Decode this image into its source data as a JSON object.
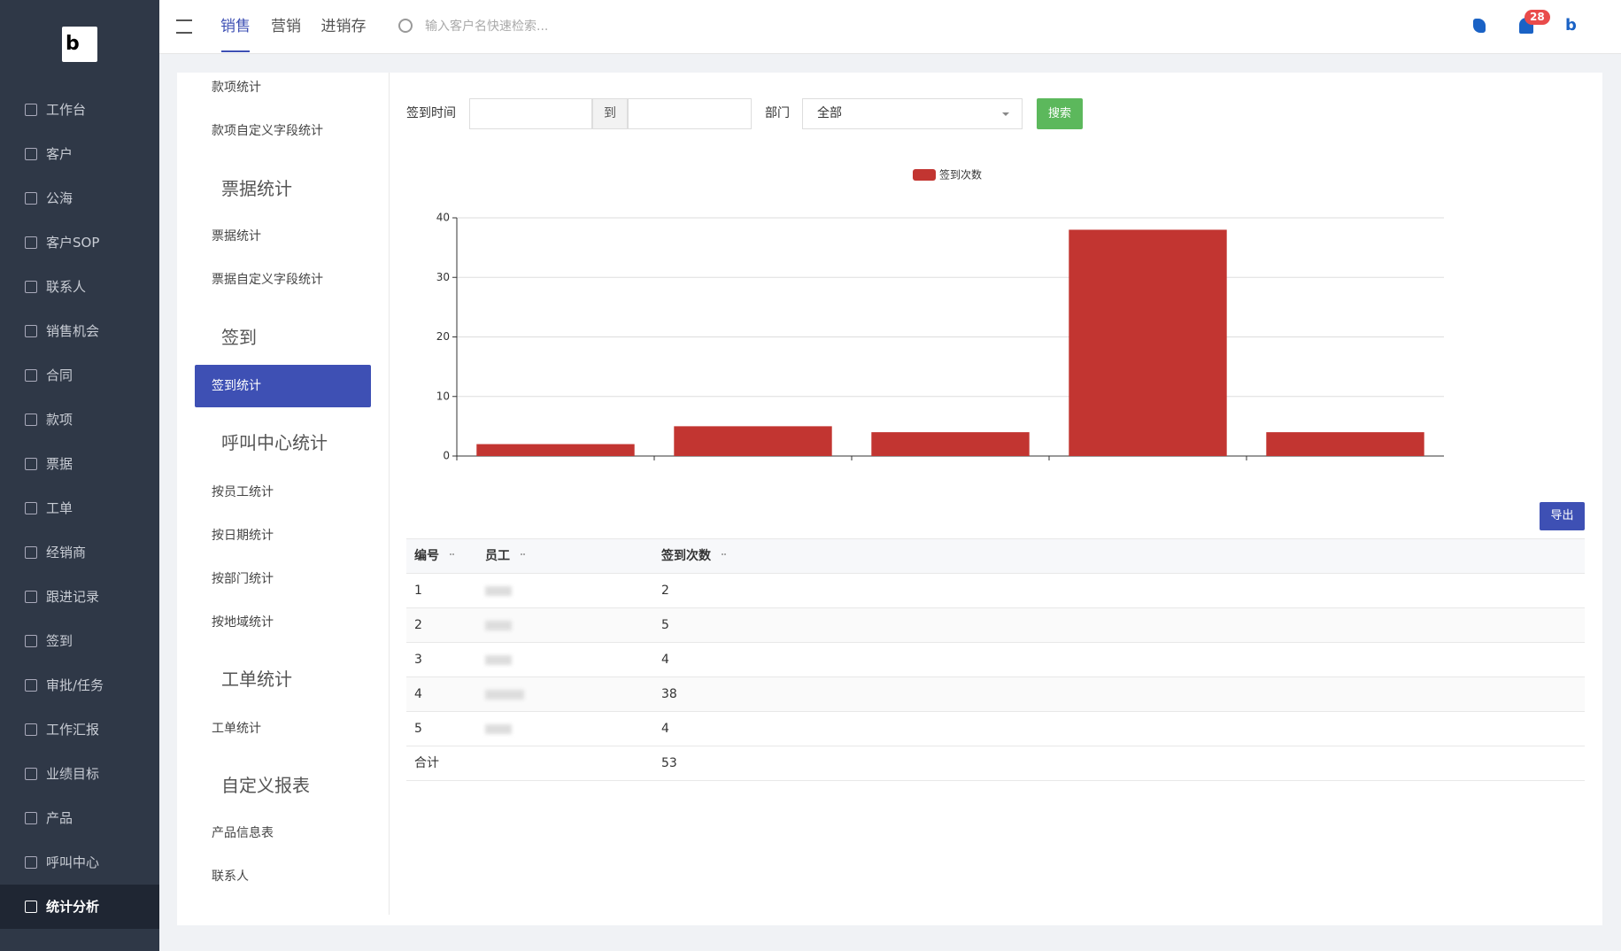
{
  "sidebar": {
    "nav": [
      "工作台",
      "客户",
      "公海",
      "客户SOP",
      "联系人",
      "销售机会",
      "合同",
      "款项",
      "票据",
      "工单",
      "经销商",
      "跟进记录",
      "签到",
      "审批/任务",
      "工作汇报",
      "业绩目标",
      "产品",
      "呼叫中心",
      "统计分析"
    ],
    "active": 18
  },
  "topbar": {
    "tabs": [
      "销售",
      "营销",
      "进销存"
    ],
    "active_tab": 0,
    "search_placeholder": "输入客户名快速检索...",
    "notification_count": "28"
  },
  "submenu": {
    "items": [
      {
        "label": "款项统计"
      },
      {
        "label": "款项自定义字段统计"
      },
      {
        "label": "票据统计",
        "heading": true
      },
      {
        "label": "票据统计"
      },
      {
        "label": "票据自定义字段统计"
      },
      {
        "label": "签到",
        "heading": true
      },
      {
        "label": "签到统计",
        "active": true
      },
      {
        "label": "呼叫中心统计",
        "heading": true
      },
      {
        "label": "按员工统计"
      },
      {
        "label": "按日期统计"
      },
      {
        "label": "按部门统计"
      },
      {
        "label": "按地域统计"
      },
      {
        "label": "工单统计",
        "heading": true
      },
      {
        "label": "工单统计"
      },
      {
        "label": "自定义报表",
        "heading": true
      },
      {
        "label": "产品信息表"
      },
      {
        "label": "联系人"
      }
    ]
  },
  "filter": {
    "date_label": "签到时间",
    "to": "到",
    "dept_label": "部门",
    "dept_value": "全部",
    "search": "搜索"
  },
  "chart_data": {
    "type": "bar",
    "categories": [
      null,
      null,
      null,
      null,
      null
    ],
    "series": [
      {
        "name": "签到次数",
        "color": "#c23531",
        "values": [
          2,
          5,
          4,
          38,
          4
        ]
      }
    ],
    "ylim": [
      0,
      40
    ],
    "yticks": [
      0,
      10,
      20,
      30,
      40
    ],
    "grid": true
  },
  "export": "导出",
  "table": {
    "columns": [
      "编号",
      "员工",
      "签到次数"
    ],
    "rows": [
      [
        "1",
        null,
        "2"
      ],
      [
        "2",
        null,
        "5"
      ],
      [
        "3",
        null,
        "4"
      ],
      [
        "4",
        null,
        "38"
      ],
      [
        "5",
        null,
        "4"
      ]
    ],
    "total_label": "合计",
    "total": "53"
  }
}
